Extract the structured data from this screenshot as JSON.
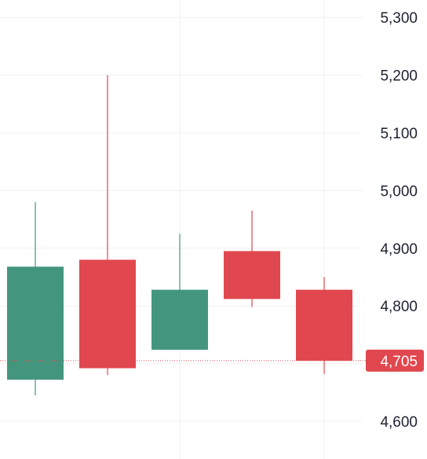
{
  "chart_data": {
    "type": "candlestick",
    "ylim": [
      4560,
      5330
    ],
    "y_ticks": [
      "4,600",
      "4,700",
      "4,800",
      "4,900",
      "5,000",
      "5,100",
      "5,200",
      "5,300"
    ],
    "y_tick_values": [
      4600,
      4700,
      4800,
      4900,
      5000,
      5100,
      5200,
      5300
    ],
    "grid": true,
    "candles": [
      {
        "open": 4672,
        "high": 4980,
        "low": 4645,
        "close": 4868
      },
      {
        "open": 4880,
        "high": 5200,
        "low": 4680,
        "close": 4692
      },
      {
        "open": 4724,
        "high": 4925,
        "low": 4724,
        "close": 4828
      },
      {
        "open": 4895,
        "high": 4965,
        "low": 4798,
        "close": 4812
      },
      {
        "open": 4828,
        "high": 4850,
        "low": 4682,
        "close": 4705
      }
    ],
    "last_price": 4705,
    "last_price_label": "4,705",
    "colors": {
      "up": "#43967d",
      "down": "#e1474e",
      "grid": "#f0f0f3",
      "last_price_line": "#e1474e",
      "text": "#1e2230"
    }
  }
}
